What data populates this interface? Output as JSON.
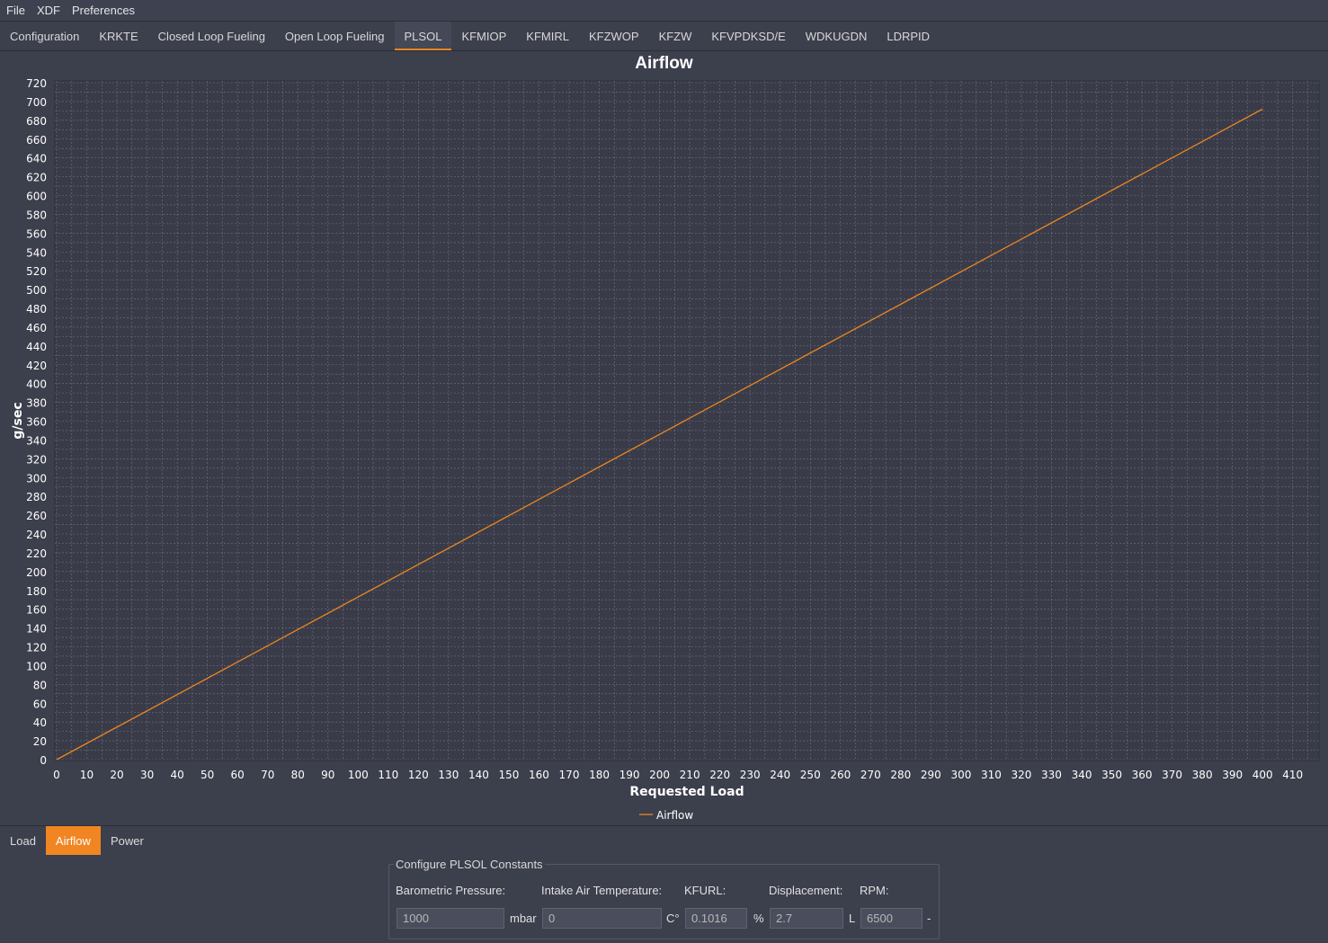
{
  "menu": [
    "File",
    "XDF",
    "Preferences"
  ],
  "tabs": [
    "Configuration",
    "KRKTE",
    "Closed Loop Fueling",
    "Open Loop Fueling",
    "PLSOL",
    "KFMIOP",
    "KFMIRL",
    "KFZWOP",
    "KFZW",
    "KFVPDKSD/E",
    "WDKUGDN",
    "LDRPID"
  ],
  "active_tab": "PLSOL",
  "colors": {
    "accent": "#f08522",
    "background": "#3c3f4c",
    "line": "#f08522"
  },
  "chart_data": {
    "type": "line",
    "title": "Airflow",
    "xlabel": "Requested Load",
    "ylabel": "g/sec",
    "xlim": [
      0,
      420
    ],
    "ylim": [
      0,
      720
    ],
    "xticks": [
      0,
      10,
      20,
      30,
      40,
      50,
      60,
      70,
      80,
      90,
      100,
      110,
      120,
      130,
      140,
      150,
      160,
      170,
      180,
      190,
      200,
      210,
      220,
      230,
      240,
      250,
      260,
      270,
      280,
      290,
      300,
      310,
      320,
      330,
      340,
      350,
      360,
      370,
      380,
      390,
      400,
      410
    ],
    "yticks": [
      0,
      20,
      40,
      60,
      80,
      100,
      120,
      140,
      160,
      180,
      200,
      220,
      240,
      260,
      280,
      300,
      320,
      340,
      360,
      380,
      400,
      420,
      440,
      460,
      480,
      500,
      520,
      540,
      560,
      580,
      600,
      620,
      640,
      660,
      680,
      700,
      720
    ],
    "grid": true,
    "legend_position": "bottom-center",
    "series": [
      {
        "name": "Airflow",
        "x": [
          0,
          100,
          200,
          300,
          400
        ],
        "y": [
          0,
          173,
          346,
          519,
          692
        ]
      }
    ]
  },
  "bottom_tabs": [
    "Load",
    "Airflow",
    "Power"
  ],
  "active_bottom_tab": "Airflow",
  "constants": {
    "title": "Configure PLSOL Constants",
    "barometric": {
      "label": "Barometric Pressure:",
      "value": "1000",
      "unit": "mbar"
    },
    "iat": {
      "label": "Intake Air Temperature:",
      "value": "0",
      "unit": "C°"
    },
    "kfurl": {
      "label": "KFURL:",
      "value": "0.1016",
      "unit": "%"
    },
    "displacement": {
      "label": "Displacement:",
      "value": "2.7",
      "unit": "L"
    },
    "rpm": {
      "label": "RPM:",
      "value": "6500",
      "unit": "-"
    }
  }
}
